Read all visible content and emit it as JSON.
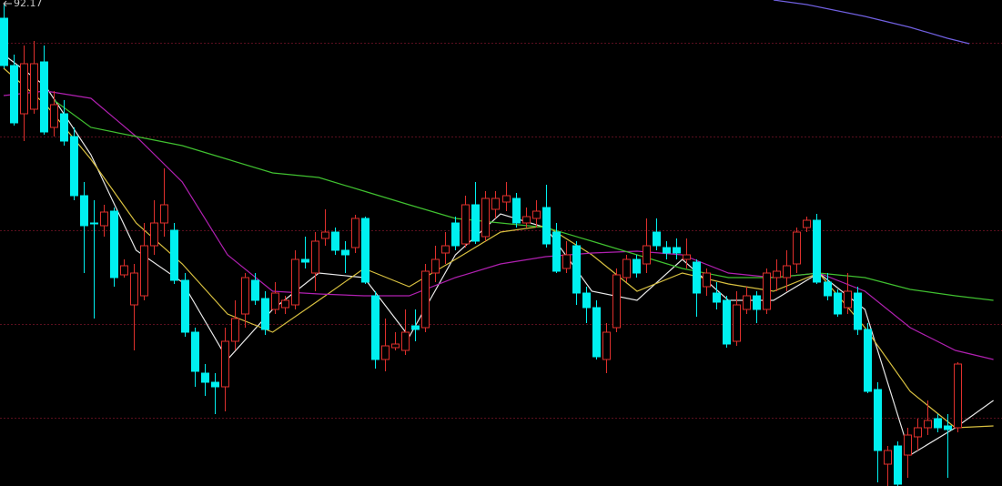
{
  "chart_data": {
    "type": "candlestick",
    "annotation": "92.17",
    "xlim": [
      -0.36,
      99.45
    ],
    "ylim": [
      86.88,
      92.22
    ],
    "up_color": "#e0302d",
    "down_color": "#00f0f0",
    "open": [
      92.02,
      91.5,
      90.97,
      91.02,
      91.54,
      90.82,
      90.97,
      90.72,
      90.07,
      89.77,
      89.74,
      89.9,
      89.2,
      88.87,
      88.97,
      89.52,
      89.77,
      89.69,
      89.14,
      88.57,
      88.12,
      88.02,
      87.97,
      88.47,
      88.77,
      89.14,
      88.94,
      88.82,
      88.84,
      88.87,
      89.37,
      89.22,
      89.6,
      89.67,
      89.47,
      89.5,
      89.82,
      88.97,
      88.27,
      88.4,
      88.37,
      88.64,
      88.62,
      89.22,
      89.44,
      89.77,
      89.54,
      89.97,
      89.62,
      89.92,
      90.0,
      90.04,
      89.77,
      89.82,
      89.94,
      89.67,
      89.27,
      89.52,
      89.0,
      88.84,
      88.27,
      88.62,
      89.17,
      89.37,
      89.32,
      89.67,
      89.5,
      89.5,
      89.37,
      89.34,
      89.07,
      89.0,
      88.92,
      88.47,
      88.82,
      88.97,
      88.82,
      89.17,
      89.17,
      89.32,
      89.72,
      89.8,
      89.12,
      89.0,
      88.84,
      89.0,
      88.6,
      87.94,
      87.12,
      87.32,
      87.22,
      87.42,
      87.52,
      87.62,
      87.54,
      87.52
    ],
    "high": [
      92.17,
      91.62,
      91.72,
      91.77,
      91.72,
      91.22,
      91.12,
      90.82,
      90.22,
      90.02,
      89.97,
      89.94,
      89.37,
      89.32,
      89.77,
      90.02,
      90.37,
      89.77,
      89.22,
      88.62,
      88.22,
      88.12,
      88.62,
      88.92,
      89.22,
      89.22,
      89.02,
      89.12,
      88.97,
      89.47,
      89.62,
      89.67,
      89.92,
      89.72,
      89.57,
      89.86,
      89.84,
      89.02,
      88.72,
      88.57,
      88.82,
      88.82,
      89.32,
      89.52,
      89.67,
      89.84,
      90.07,
      90.22,
      90.12,
      90.12,
      90.22,
      90.1,
      89.94,
      90.02,
      90.19,
      89.77,
      89.57,
      89.57,
      89.07,
      88.92,
      88.67,
      89.27,
      89.42,
      89.42,
      89.82,
      89.82,
      89.57,
      89.6,
      89.6,
      89.37,
      89.27,
      89.12,
      88.97,
      89.02,
      89.07,
      89.02,
      89.27,
      89.37,
      89.47,
      89.72,
      89.84,
      89.87,
      89.22,
      89.04,
      89.22,
      89.07,
      88.67,
      88.02,
      87.32,
      87.37,
      87.52,
      87.62,
      87.82,
      87.67,
      87.67,
      88.24
    ],
    "low": [
      91.47,
      90.84,
      90.67,
      90.97,
      90.74,
      90.72,
      90.62,
      90.02,
      89.22,
      88.72,
      89.62,
      89.07,
      89.17,
      88.37,
      88.92,
      89.42,
      89.62,
      89.1,
      88.52,
      87.97,
      87.87,
      87.67,
      87.7,
      88.37,
      88.62,
      88.87,
      88.54,
      88.77,
      88.77,
      88.82,
      89.27,
      89.02,
      89.52,
      89.42,
      89.22,
      89.44,
      89.1,
      88.17,
      88.14,
      88.37,
      88.32,
      88.47,
      88.57,
      89.12,
      89.32,
      89.47,
      89.5,
      89.54,
      89.57,
      89.82,
      89.9,
      89.72,
      89.72,
      89.72,
      89.5,
      89.22,
      89.22,
      88.87,
      88.67,
      88.27,
      88.12,
      88.57,
      89.12,
      89.17,
      89.22,
      89.47,
      89.37,
      89.37,
      89.27,
      88.74,
      88.97,
      88.82,
      88.4,
      88.42,
      88.77,
      88.67,
      88.77,
      89.02,
      89.02,
      89.22,
      89.67,
      89.1,
      88.92,
      88.74,
      88.77,
      88.54,
      87.9,
      86.92,
      86.88,
      86.88,
      86.97,
      87.27,
      87.44,
      87.47,
      86.97,
      87.47
    ],
    "close": [
      91.5,
      90.87,
      91.52,
      91.52,
      90.77,
      91.07,
      90.67,
      90.07,
      89.74,
      89.76,
      89.89,
      89.17,
      89.3,
      89.22,
      89.52,
      89.77,
      89.97,
      89.14,
      88.57,
      88.14,
      88.02,
      87.97,
      88.47,
      88.72,
      89.17,
      88.92,
      88.6,
      89.0,
      88.92,
      89.37,
      89.34,
      89.57,
      89.67,
      89.47,
      89.42,
      89.82,
      89.12,
      88.27,
      88.42,
      88.44,
      88.57,
      88.6,
      89.24,
      89.37,
      89.52,
      89.52,
      89.97,
      89.57,
      90.04,
      90.04,
      90.07,
      89.77,
      89.84,
      89.9,
      89.54,
      89.24,
      89.42,
      89.0,
      88.84,
      88.3,
      88.57,
      89.2,
      89.37,
      89.22,
      89.52,
      89.52,
      89.44,
      89.44,
      89.42,
      89.0,
      89.22,
      88.9,
      88.44,
      88.87,
      88.97,
      88.82,
      89.22,
      89.24,
      89.3,
      89.67,
      89.8,
      89.12,
      88.97,
      88.77,
      89.02,
      88.6,
      87.92,
      87.27,
      87.27,
      86.9,
      87.44,
      87.52,
      87.6,
      87.52,
      87.5,
      88.22
    ],
    "series": [
      {
        "color": "#e8e8e8",
        "x": [
          0,
          4.2,
          8.7,
          13.2,
          17.8,
          22.3,
          26.8,
          31.4,
          35.9,
          40.4,
          45,
          49.5,
          54,
          58.6,
          63.1,
          67.6,
          72.2,
          76.7,
          81.2,
          85.8,
          90.3,
          94.8,
          98.6
        ],
        "values": [
          91.62,
          91.27,
          90.52,
          89.47,
          89.12,
          88.27,
          88.82,
          89.22,
          89.17,
          88.52,
          89.42,
          89.87,
          89.72,
          89.02,
          88.92,
          89.37,
          88.92,
          88.92,
          89.22,
          88.82,
          87.22,
          87.52,
          87.82
        ]
      },
      {
        "color": "#d8c040",
        "x": [
          0,
          4.2,
          8.7,
          13.2,
          17.8,
          22.3,
          26.8,
          31.4,
          35.9,
          40.4,
          45,
          49.5,
          54,
          58.6,
          63.1,
          67.6,
          72.2,
          76.7,
          81.2,
          85.8,
          90.3,
          94.8,
          98.6
        ],
        "values": [
          91.47,
          91.07,
          90.47,
          89.77,
          89.32,
          88.77,
          88.57,
          88.92,
          89.27,
          89.07,
          89.37,
          89.67,
          89.74,
          89.42,
          89.02,
          89.22,
          89.1,
          89.02,
          89.22,
          88.62,
          87.92,
          87.52,
          87.54
        ]
      },
      {
        "color": "#b020b0",
        "x": [
          0,
          4.2,
          8.7,
          13.2,
          17.8,
          22.3,
          26.8,
          31.4,
          35.9,
          40.4,
          45,
          49.5,
          54,
          58.6,
          63.1,
          67.6,
          72.2,
          76.7,
          81.2,
          85.8,
          90.3,
          94.8,
          98.6
        ],
        "values": [
          91.17,
          91.22,
          91.14,
          90.72,
          90.22,
          89.42,
          89.02,
          88.99,
          88.97,
          88.97,
          89.17,
          89.32,
          89.4,
          89.44,
          89.46,
          89.42,
          89.22,
          89.17,
          89.22,
          89.02,
          88.62,
          88.37,
          88.27
        ]
      },
      {
        "color": "#40c030",
        "x": [
          5,
          8.7,
          13.2,
          17.8,
          22.3,
          26.8,
          31.4,
          35.9,
          40.4,
          45,
          49.5,
          54,
          58.6,
          63.1,
          67.6,
          72.2,
          76.7,
          81.2,
          85.8,
          90.3,
          94.8,
          98.6
        ],
        "values": [
          91.12,
          90.82,
          90.72,
          90.62,
          90.47,
          90.32,
          90.27,
          90.12,
          89.97,
          89.82,
          89.77,
          89.72,
          89.57,
          89.42,
          89.27,
          89.17,
          89.17,
          89.22,
          89.17,
          89.04,
          88.97,
          88.92
        ]
      },
      {
        "color": "#7060e0",
        "x": [
          76.7,
          80,
          85.8,
          90.3,
          94,
          96.2
        ],
        "values": [
          92.22,
          92.17,
          92.04,
          91.92,
          91.8,
          91.74
        ]
      }
    ]
  }
}
